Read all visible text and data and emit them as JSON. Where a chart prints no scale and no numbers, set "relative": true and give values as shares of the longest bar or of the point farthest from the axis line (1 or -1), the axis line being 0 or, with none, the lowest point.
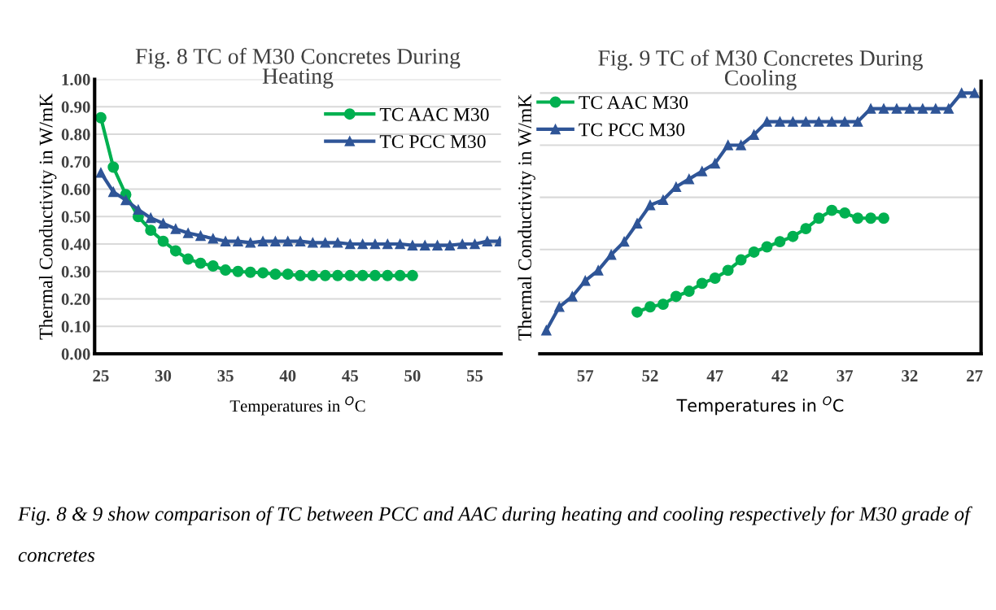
{
  "chart_data": [
    {
      "type": "line",
      "title": "Fig. 8 TC of M30 Concretes During\nHeating",
      "xlabel": "Temperatures in $^{O}$C",
      "ylabel": "Thermal Conductivity in W/mK",
      "xlim": [
        24.5,
        57.1
      ],
      "xticks": [
        25,
        30,
        35,
        40,
        45,
        50,
        55
      ],
      "ylim": [
        0,
        1
      ],
      "yticks": [
        {
          "value": 0,
          "label": "0.00"
        },
        {
          "value": 0.1,
          "label": "0.10"
        },
        {
          "value": 0.2,
          "label": "0.20"
        },
        {
          "value": 0.3,
          "label": "0.30"
        },
        {
          "value": 0.4,
          "label": "0.40"
        },
        {
          "value": 0.5,
          "label": "0.50"
        },
        {
          "value": 0.6,
          "label": "0.60"
        },
        {
          "value": 0.7,
          "label": "0.70"
        },
        {
          "value": 0.8,
          "label": "0.80"
        },
        {
          "value": 0.9,
          "label": "0.90"
        },
        {
          "value": 1,
          "label": "1.00"
        }
      ],
      "grid": "y",
      "legend": "top right",
      "series": [
        {
          "name": "TC AAC M30",
          "color": "#00b050",
          "marker": "circle",
          "x": [
            25,
            26,
            27,
            28,
            29,
            30,
            31,
            32,
            33,
            34,
            35,
            36,
            37,
            38,
            39,
            40,
            41,
            42,
            43,
            44,
            45,
            46,
            47,
            48,
            49,
            50
          ],
          "values": [
            0.86,
            0.68,
            0.58,
            0.5,
            0.45,
            0.41,
            0.375,
            0.345,
            0.33,
            0.32,
            0.305,
            0.3,
            0.297,
            0.295,
            0.29,
            0.29,
            0.285,
            0.285,
            0.285,
            0.285,
            0.285,
            0.285,
            0.285,
            0.285,
            0.285,
            0.285
          ]
        },
        {
          "name": "TC PCC M30",
          "color": "#2f5597",
          "marker": "triangle",
          "x": [
            25,
            26,
            27,
            28,
            29,
            30,
            31,
            32,
            33,
            34,
            35,
            36,
            37,
            38,
            39,
            40,
            41,
            42,
            43,
            44,
            45,
            46,
            47,
            48,
            49,
            50,
            51,
            52,
            53,
            54,
            55,
            56,
            57
          ],
          "values": [
            0.66,
            0.59,
            0.56,
            0.525,
            0.495,
            0.475,
            0.455,
            0.44,
            0.43,
            0.42,
            0.41,
            0.41,
            0.405,
            0.41,
            0.41,
            0.41,
            0.41,
            0.405,
            0.405,
            0.405,
            0.4,
            0.4,
            0.4,
            0.4,
            0.4,
            0.395,
            0.395,
            0.395,
            0.395,
            0.4,
            0.4,
            0.41,
            0.41
          ]
        }
      ],
      "annotations": [
        "Fig. 8 & 9 show comparison of TC between PCC and AAC during heating and cooling respectively for M30 grade of concretes"
      ]
    },
    {
      "type": "line",
      "title": "Fig. 9 TC of M30 Concretes During\nCooling",
      "xlabel": "Temperatures in $^{O}$C",
      "ylabel": "Thermal Conductivity in W/mK",
      "relative": true,
      "xlim": [
        60.5,
        26.5
      ],
      "xticks": [
        57,
        52,
        47,
        42,
        37,
        32,
        27
      ],
      "grid": "y",
      "legend": "top left",
      "series": [
        {
          "name": "TC AAC M30",
          "color": "#00b050",
          "marker": "circle",
          "x": [
            53,
            52,
            51,
            50,
            49,
            48,
            47,
            46,
            45,
            44,
            43,
            42,
            41,
            40,
            39,
            38,
            37,
            36,
            35,
            34
          ],
          "values": [
            0.16,
            0.18,
            0.19,
            0.22,
            0.24,
            0.27,
            0.29,
            0.32,
            0.36,
            0.39,
            0.41,
            0.43,
            0.45,
            0.48,
            0.52,
            0.55,
            0.54,
            0.52,
            0.52,
            0.52
          ]
        },
        {
          "name": "TC PCC M30",
          "color": "#2f5597",
          "marker": "triangle",
          "x": [
            60,
            59,
            58,
            57,
            56,
            55,
            54,
            53,
            52,
            51,
            50,
            49,
            48,
            47,
            46,
            45,
            44,
            43,
            42,
            41,
            40,
            39,
            38,
            37,
            36,
            35,
            34,
            33,
            32,
            31,
            30,
            29,
            28,
            27
          ],
          "values": [
            0.09,
            0.18,
            0.22,
            0.28,
            0.32,
            0.38,
            0.43,
            0.5,
            0.57,
            0.59,
            0.64,
            0.67,
            0.7,
            0.73,
            0.8,
            0.8,
            0.84,
            0.89,
            0.89,
            0.89,
            0.89,
            0.89,
            0.89,
            0.89,
            0.89,
            0.94,
            0.94,
            0.94,
            0.94,
            0.94,
            0.94,
            0.94,
            1,
            1
          ]
        }
      ]
    }
  ]
}
